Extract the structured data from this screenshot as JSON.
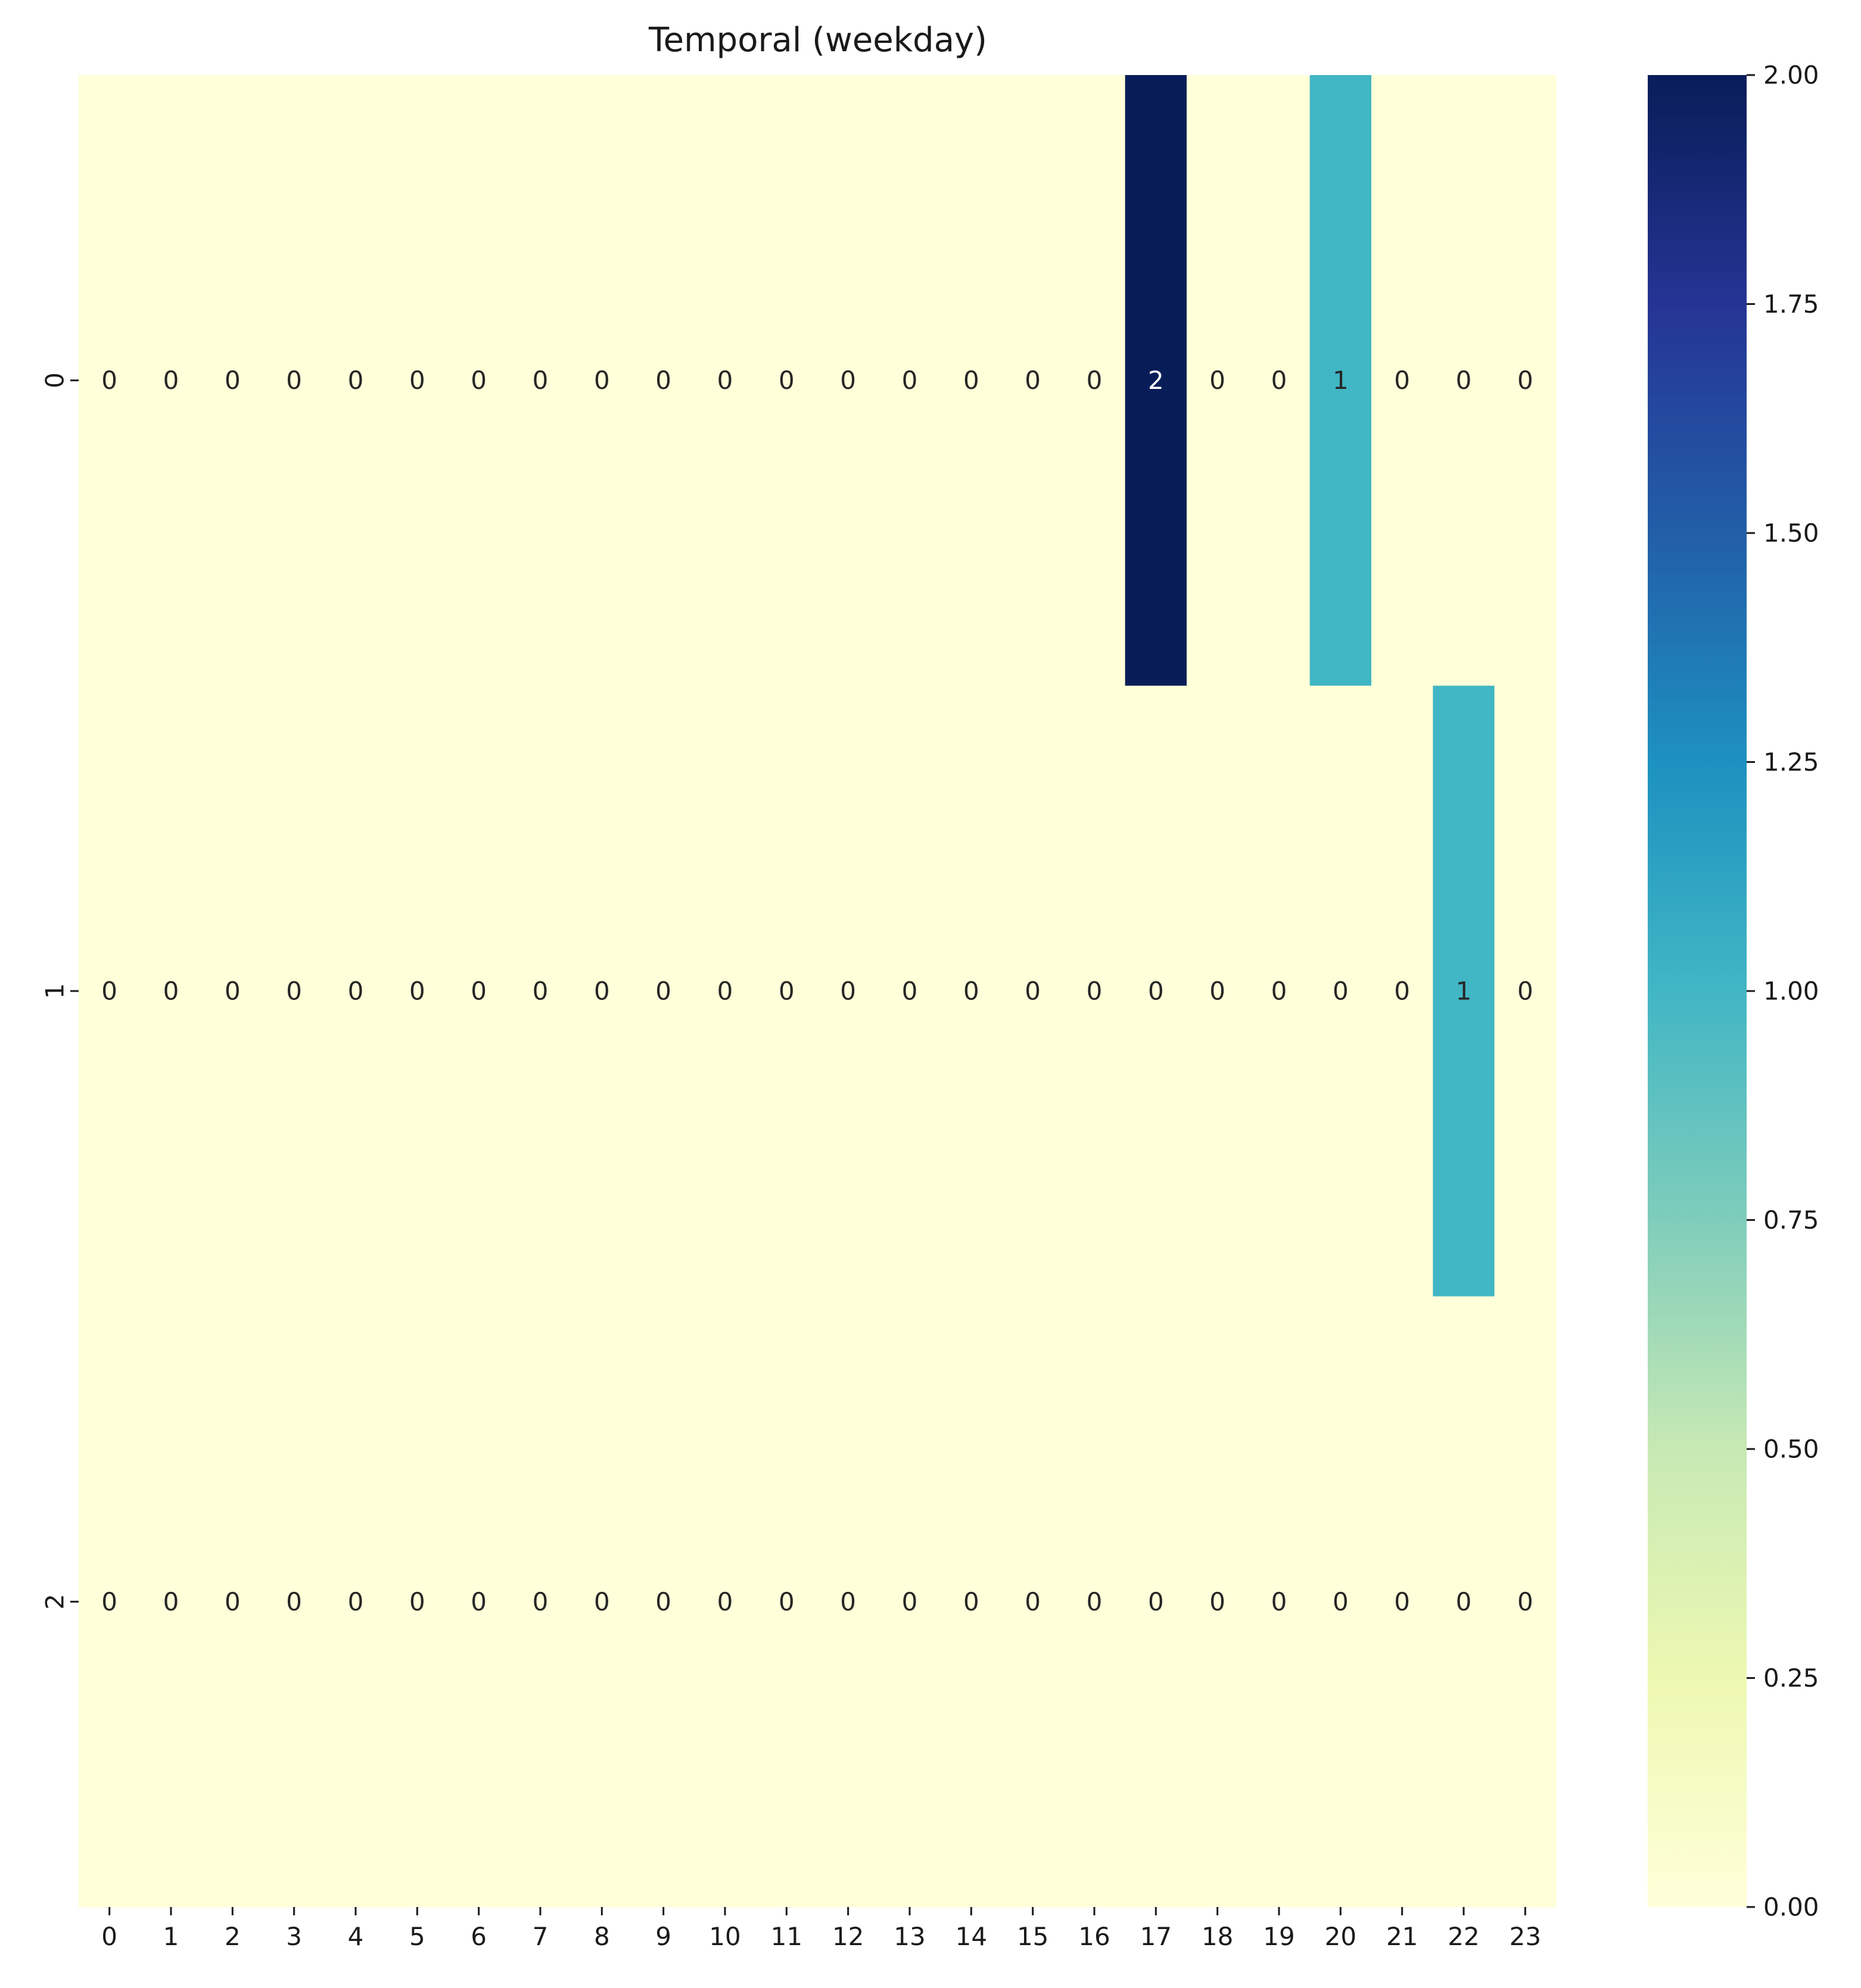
{
  "chart_data": {
    "type": "heatmap",
    "title": "Temporal (weekday)",
    "xlabel": "",
    "ylabel": "",
    "x_ticks": [
      "0",
      "1",
      "2",
      "3",
      "4",
      "5",
      "6",
      "7",
      "8",
      "9",
      "10",
      "11",
      "12",
      "13",
      "14",
      "15",
      "16",
      "17",
      "18",
      "19",
      "20",
      "21",
      "22",
      "23"
    ],
    "y_ticks": [
      "0",
      "1",
      "2"
    ],
    "values": [
      [
        0,
        0,
        0,
        0,
        0,
        0,
        0,
        0,
        0,
        0,
        0,
        0,
        0,
        0,
        0,
        0,
        0,
        2,
        0,
        0,
        1,
        0,
        0,
        0
      ],
      [
        0,
        0,
        0,
        0,
        0,
        0,
        0,
        0,
        0,
        0,
        0,
        0,
        0,
        0,
        0,
        0,
        0,
        0,
        0,
        0,
        0,
        0,
        1,
        0
      ],
      [
        0,
        0,
        0,
        0,
        0,
        0,
        0,
        0,
        0,
        0,
        0,
        0,
        0,
        0,
        0,
        0,
        0,
        0,
        0,
        0,
        0,
        0,
        0,
        0
      ]
    ],
    "zlim": [
      0,
      2
    ],
    "colormap": "YlGnBu",
    "colorbar_ticks": [
      "0.00",
      "0.25",
      "0.50",
      "0.75",
      "1.00",
      "1.25",
      "1.50",
      "1.75",
      "2.00"
    ],
    "annotations": true,
    "grid": false,
    "colorbar_position": "right"
  }
}
